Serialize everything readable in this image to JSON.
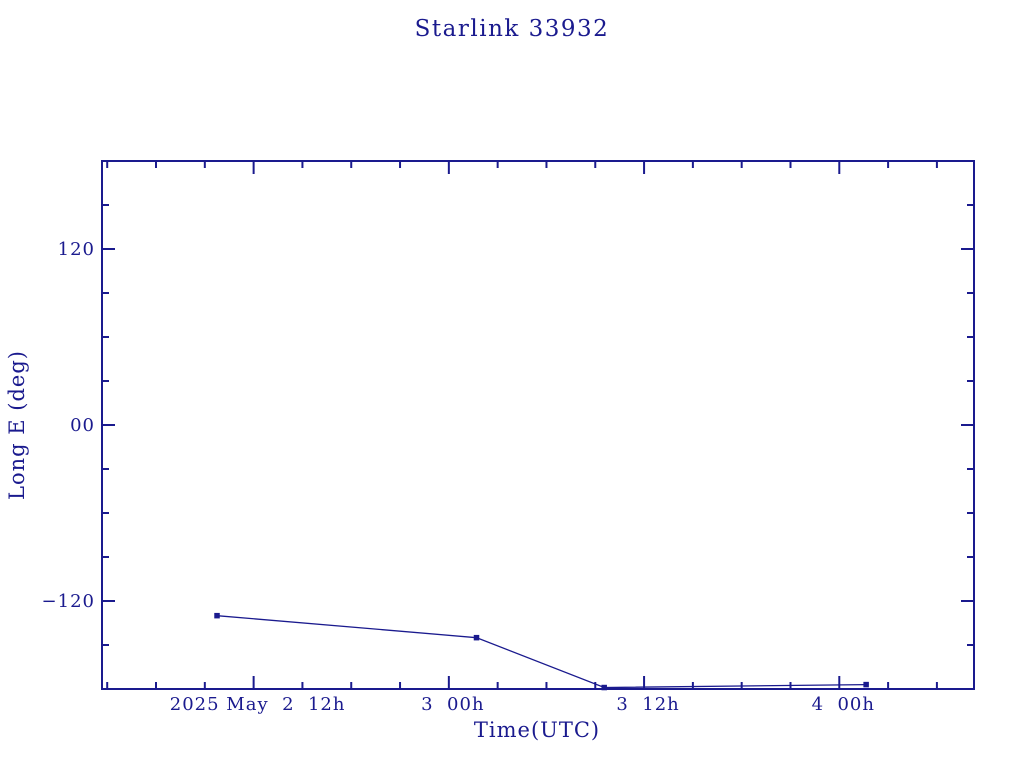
{
  "chart_data": {
    "type": "line",
    "title": "Starlink 33932",
    "xlabel": "Time(UTC)",
    "ylabel": "Long E (deg)",
    "x_unit": "hours since 2025-05-02 00:00 UTC",
    "xlim": [
      2.68,
      56.28
    ],
    "ylim": [
      -180,
      180
    ],
    "x_major_ticks": [
      {
        "value": 12,
        "label": "2025 May  2  12h"
      },
      {
        "value": 24,
        "label": "3  00h"
      },
      {
        "value": 36,
        "label": "3  12h"
      },
      {
        "value": 48,
        "label": "4  00h"
      }
    ],
    "x_minor_step_hours": 3,
    "y_major_ticks": [
      {
        "value": 120,
        "label": "120"
      },
      {
        "value": 0,
        "label": "00"
      },
      {
        "value": -120,
        "label": "−120"
      }
    ],
    "y_minor_step_deg": 30,
    "grid": false,
    "legend": "none",
    "marker": "filled-square",
    "series": [
      {
        "name": "Long E",
        "x_hours": [
          9.75,
          25.7,
          33.55,
          49.65
        ],
        "y_deg": [
          -130,
          -145,
          -179,
          -177
        ],
        "approx_times_utc": [
          "2025-05-02 ~09:45",
          "2025-05-03 ~01:40",
          "2025-05-03 ~09:35",
          "2025-05-04 ~01:40"
        ]
      }
    ],
    "colors": {
      "line": "#1a1a8e",
      "marker": "#1a1a8e",
      "frame": "#1a1a8e",
      "text": "#1a1a8e",
      "background": "#ffffff"
    }
  }
}
